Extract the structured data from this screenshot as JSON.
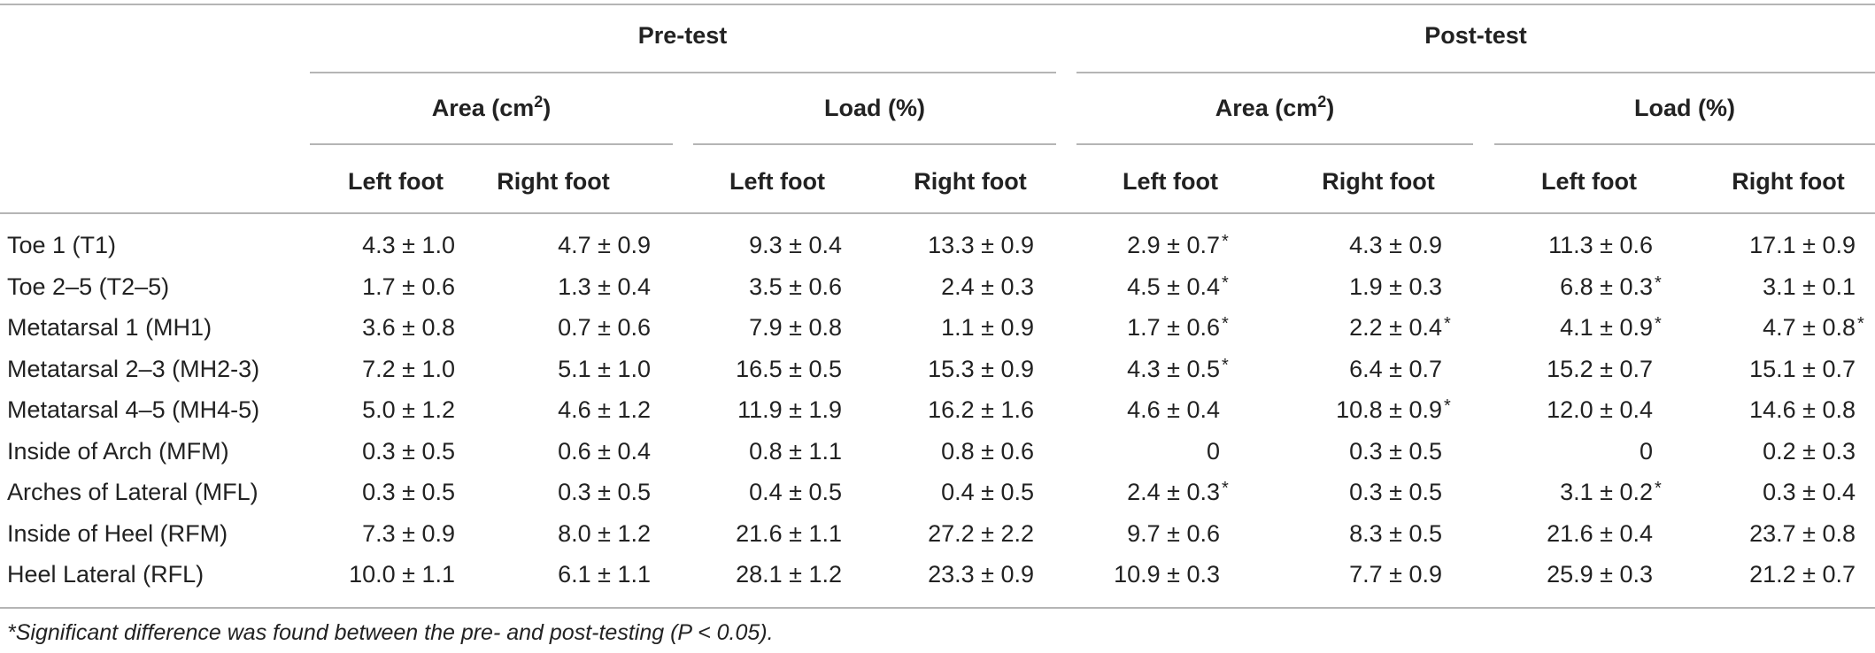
{
  "header": {
    "groups": [
      "Pre-test",
      "Post-test"
    ],
    "subgroups": [
      "Area (cm",
      "Load (%)",
      "Area (cm",
      "Load (%)"
    ],
    "area_superscript": "2",
    "area_close": ")",
    "columns": [
      "Left foot",
      "Right foot",
      "Left foot",
      "Right foot",
      "Left foot",
      "Right foot",
      "Left foot",
      "Right foot"
    ]
  },
  "rows": [
    {
      "label": "Toe 1 (T1)",
      "values": [
        "4.3 ± 1.0",
        "4.7 ± 0.9",
        "9.3 ± 0.4",
        "13.3 ± 0.9",
        "2.9 ± 0.7",
        "4.3 ± 0.9",
        "11.3 ± 0.6",
        "17.1 ± 0.9"
      ],
      "sig": [
        false,
        false,
        false,
        false,
        true,
        false,
        false,
        false
      ]
    },
    {
      "label": "Toe 2–5 (T2–5)",
      "values": [
        "1.7 ± 0.6",
        "1.3 ± 0.4",
        "3.5 ± 0.6",
        "2.4 ± 0.3",
        "4.5 ± 0.4",
        "1.9 ± 0.3",
        "6.8 ± 0.3",
        "3.1 ± 0.1"
      ],
      "sig": [
        false,
        false,
        false,
        false,
        true,
        false,
        true,
        false
      ]
    },
    {
      "label": "Metatarsal 1 (MH1)",
      "values": [
        "3.6 ± 0.8",
        "0.7 ± 0.6",
        "7.9 ± 0.8",
        "1.1 ± 0.9",
        "1.7 ± 0.6",
        "2.2 ± 0.4",
        "4.1 ± 0.9",
        "4.7 ± 0.8"
      ],
      "sig": [
        false,
        false,
        false,
        false,
        true,
        true,
        true,
        true
      ]
    },
    {
      "label": "Metatarsal 2–3 (MH2-3)",
      "values": [
        "7.2 ± 1.0",
        "5.1 ± 1.0",
        "16.5 ± 0.5",
        "15.3 ± 0.9",
        "4.3 ± 0.5",
        "6.4 ± 0.7",
        "15.2 ± 0.7",
        "15.1 ± 0.7"
      ],
      "sig": [
        false,
        false,
        false,
        false,
        true,
        false,
        false,
        false
      ]
    },
    {
      "label": "Metatarsal 4–5 (MH4-5)",
      "values": [
        "5.0 ± 1.2",
        "4.6 ± 1.2",
        "11.9 ± 1.9",
        "16.2 ± 1.6",
        "4.6 ± 0.4",
        "10.8 ± 0.9",
        "12.0 ± 0.4",
        "14.6 ± 0.8"
      ],
      "sig": [
        false,
        false,
        false,
        false,
        false,
        true,
        false,
        false
      ]
    },
    {
      "label": "Inside of Arch (MFM)",
      "values": [
        "0.3 ± 0.5",
        "0.6 ± 0.4",
        "0.8 ± 1.1",
        "0.8 ± 0.6",
        "0",
        "0.3 ± 0.5",
        "0",
        "0.2 ± 0.3"
      ],
      "sig": [
        false,
        false,
        false,
        false,
        false,
        false,
        false,
        false
      ]
    },
    {
      "label": "Arches of Lateral (MFL)",
      "values": [
        "0.3 ± 0.5",
        "0.3 ± 0.5",
        "0.4 ± 0.5",
        "0.4 ± 0.5",
        "2.4 ± 0.3",
        "0.3 ± 0.5",
        "3.1 ± 0.2",
        "0.3 ± 0.4"
      ],
      "sig": [
        false,
        false,
        false,
        false,
        true,
        false,
        true,
        false
      ]
    },
    {
      "label": "Inside of Heel (RFM)",
      "values": [
        "7.3 ± 0.9",
        "8.0 ± 1.2",
        "21.6 ± 1.1",
        "27.2 ± 2.2",
        "9.7 ± 0.6",
        "8.3 ± 0.5",
        "21.6 ± 0.4",
        "23.7 ± 0.8"
      ],
      "sig": [
        false,
        false,
        false,
        false,
        false,
        false,
        false,
        false
      ]
    },
    {
      "label": "Heel Lateral (RFL)",
      "values": [
        "10.0 ± 1.1",
        "6.1 ± 1.1",
        "28.1 ± 1.2",
        "23.3 ± 0.9",
        "10.9 ± 0.3",
        "7.7 ± 0.9",
        "25.9 ± 0.3",
        "21.2 ± 0.7"
      ],
      "sig": [
        false,
        false,
        false,
        false,
        false,
        false,
        false,
        false
      ]
    }
  ],
  "star_symbol": "*",
  "footnote": "*Significant difference was found between the pre- and post-testing (P < 0.05)."
}
